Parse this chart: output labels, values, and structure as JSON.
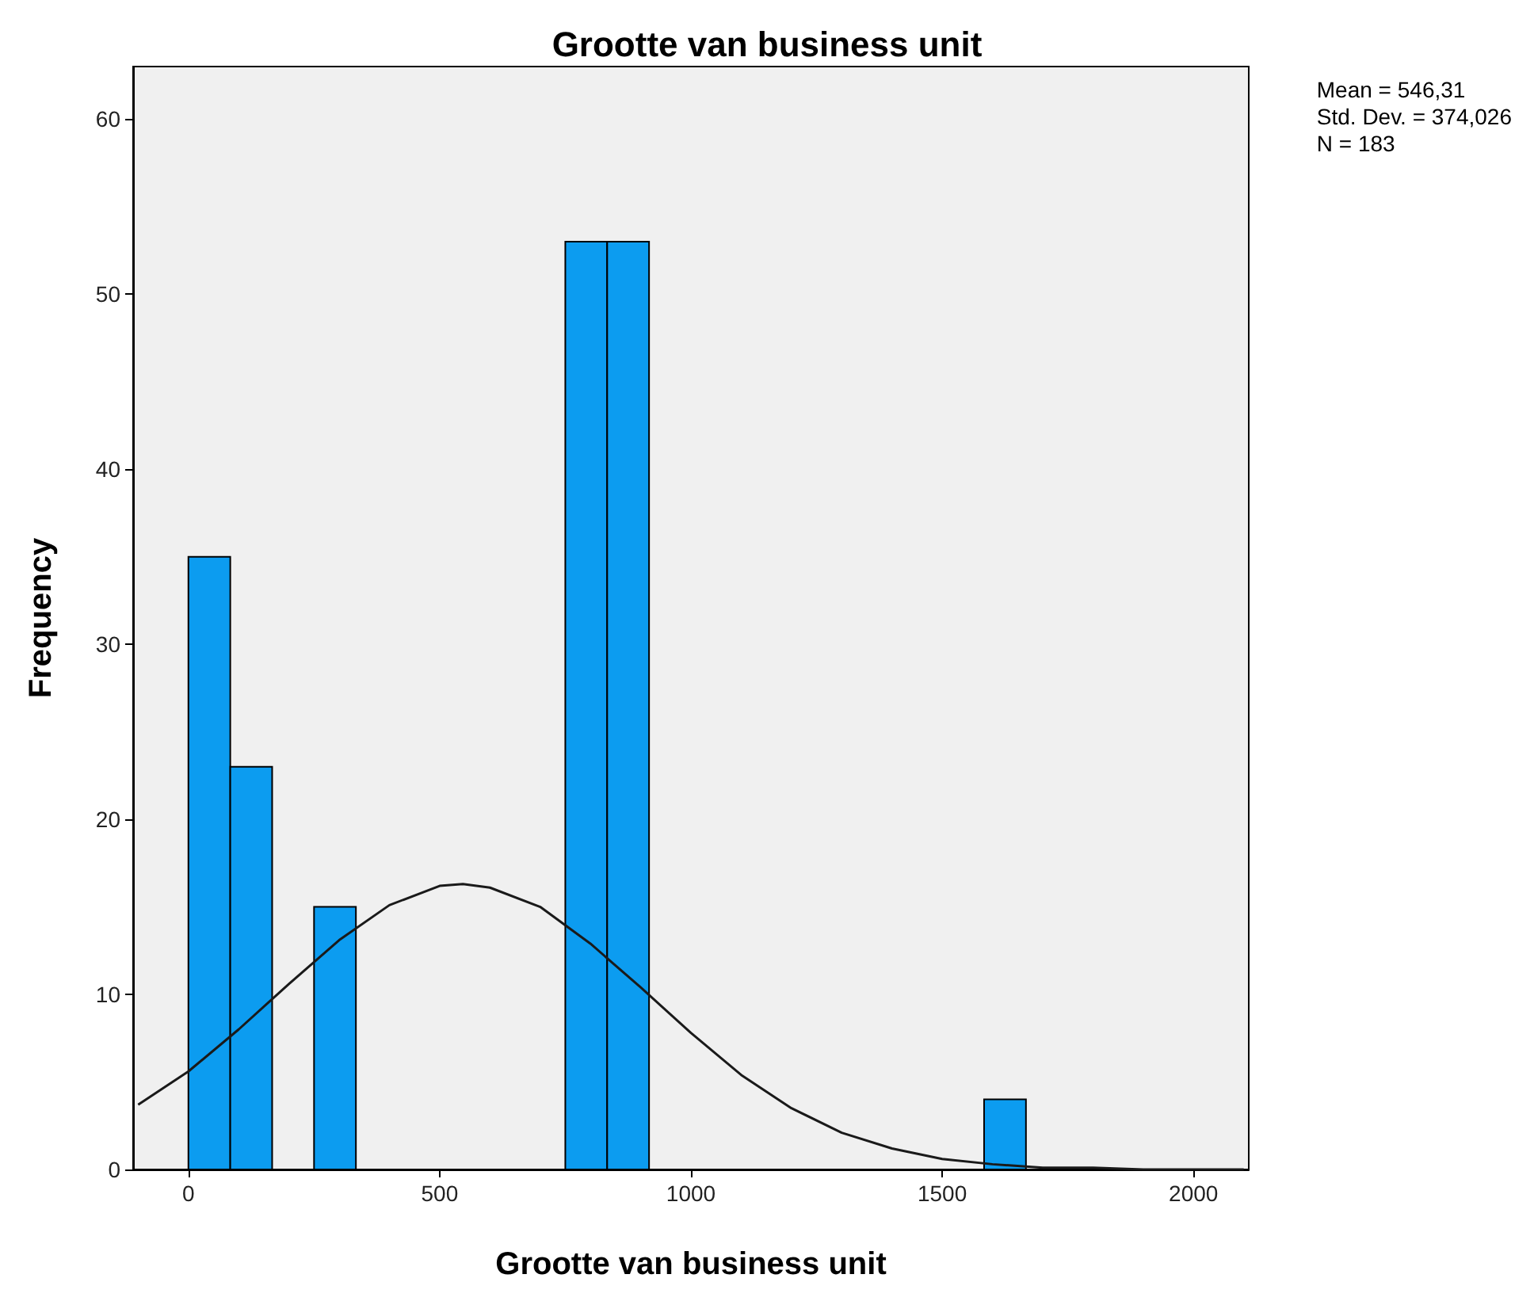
{
  "chart_data": {
    "type": "histogram",
    "title": "Grootte van business unit",
    "xlabel": "Grootte van business unit",
    "ylabel": "Frequency",
    "annotations": [
      "Mean = 546,31\nStd. Dev. = 374,026\nN = 183"
    ],
    "bins": [
      0,
      83.33,
      166.67,
      250,
      333.33,
      416.67,
      500,
      583.33,
      666.67,
      750,
      833.33,
      916.67,
      1000,
      1083.33,
      1166.67,
      1250,
      1333.33,
      1416.67,
      1500,
      1583.33,
      1666.67
    ],
    "values": [
      35,
      23,
      0,
      15,
      0,
      0,
      0,
      0,
      0,
      53,
      53,
      0,
      0,
      0,
      0,
      0,
      0,
      0,
      0,
      4
    ],
    "color": "#0c9cf0",
    "xlim": [
      -110,
      2110
    ],
    "xticks": [
      0,
      500,
      1000,
      1500,
      2000
    ],
    "ylim": [
      0,
      63
    ],
    "yticks": [
      0,
      10,
      20,
      30,
      40,
      50,
      60
    ],
    "series": [
      {
        "type": "line",
        "color": "#1a1a1a",
        "marker": "none",
        "x": [
          -100,
          0,
          100,
          200,
          300,
          400,
          500,
          546.31,
          600,
          700,
          800,
          900,
          1000,
          1100,
          1200,
          1300,
          1400,
          1500,
          1600,
          1700,
          1800,
          1900,
          2000,
          2100
        ],
        "values": [
          3.7,
          5.6,
          8,
          10.6,
          13.1,
          15.1,
          16.2,
          16.3,
          16.1,
          15,
          12.9,
          10.4,
          7.8,
          5.4,
          3.5,
          2.1,
          1.2,
          0.6,
          0.3,
          0.1,
          0.1,
          0,
          0,
          0
        ]
      }
    ]
  }
}
